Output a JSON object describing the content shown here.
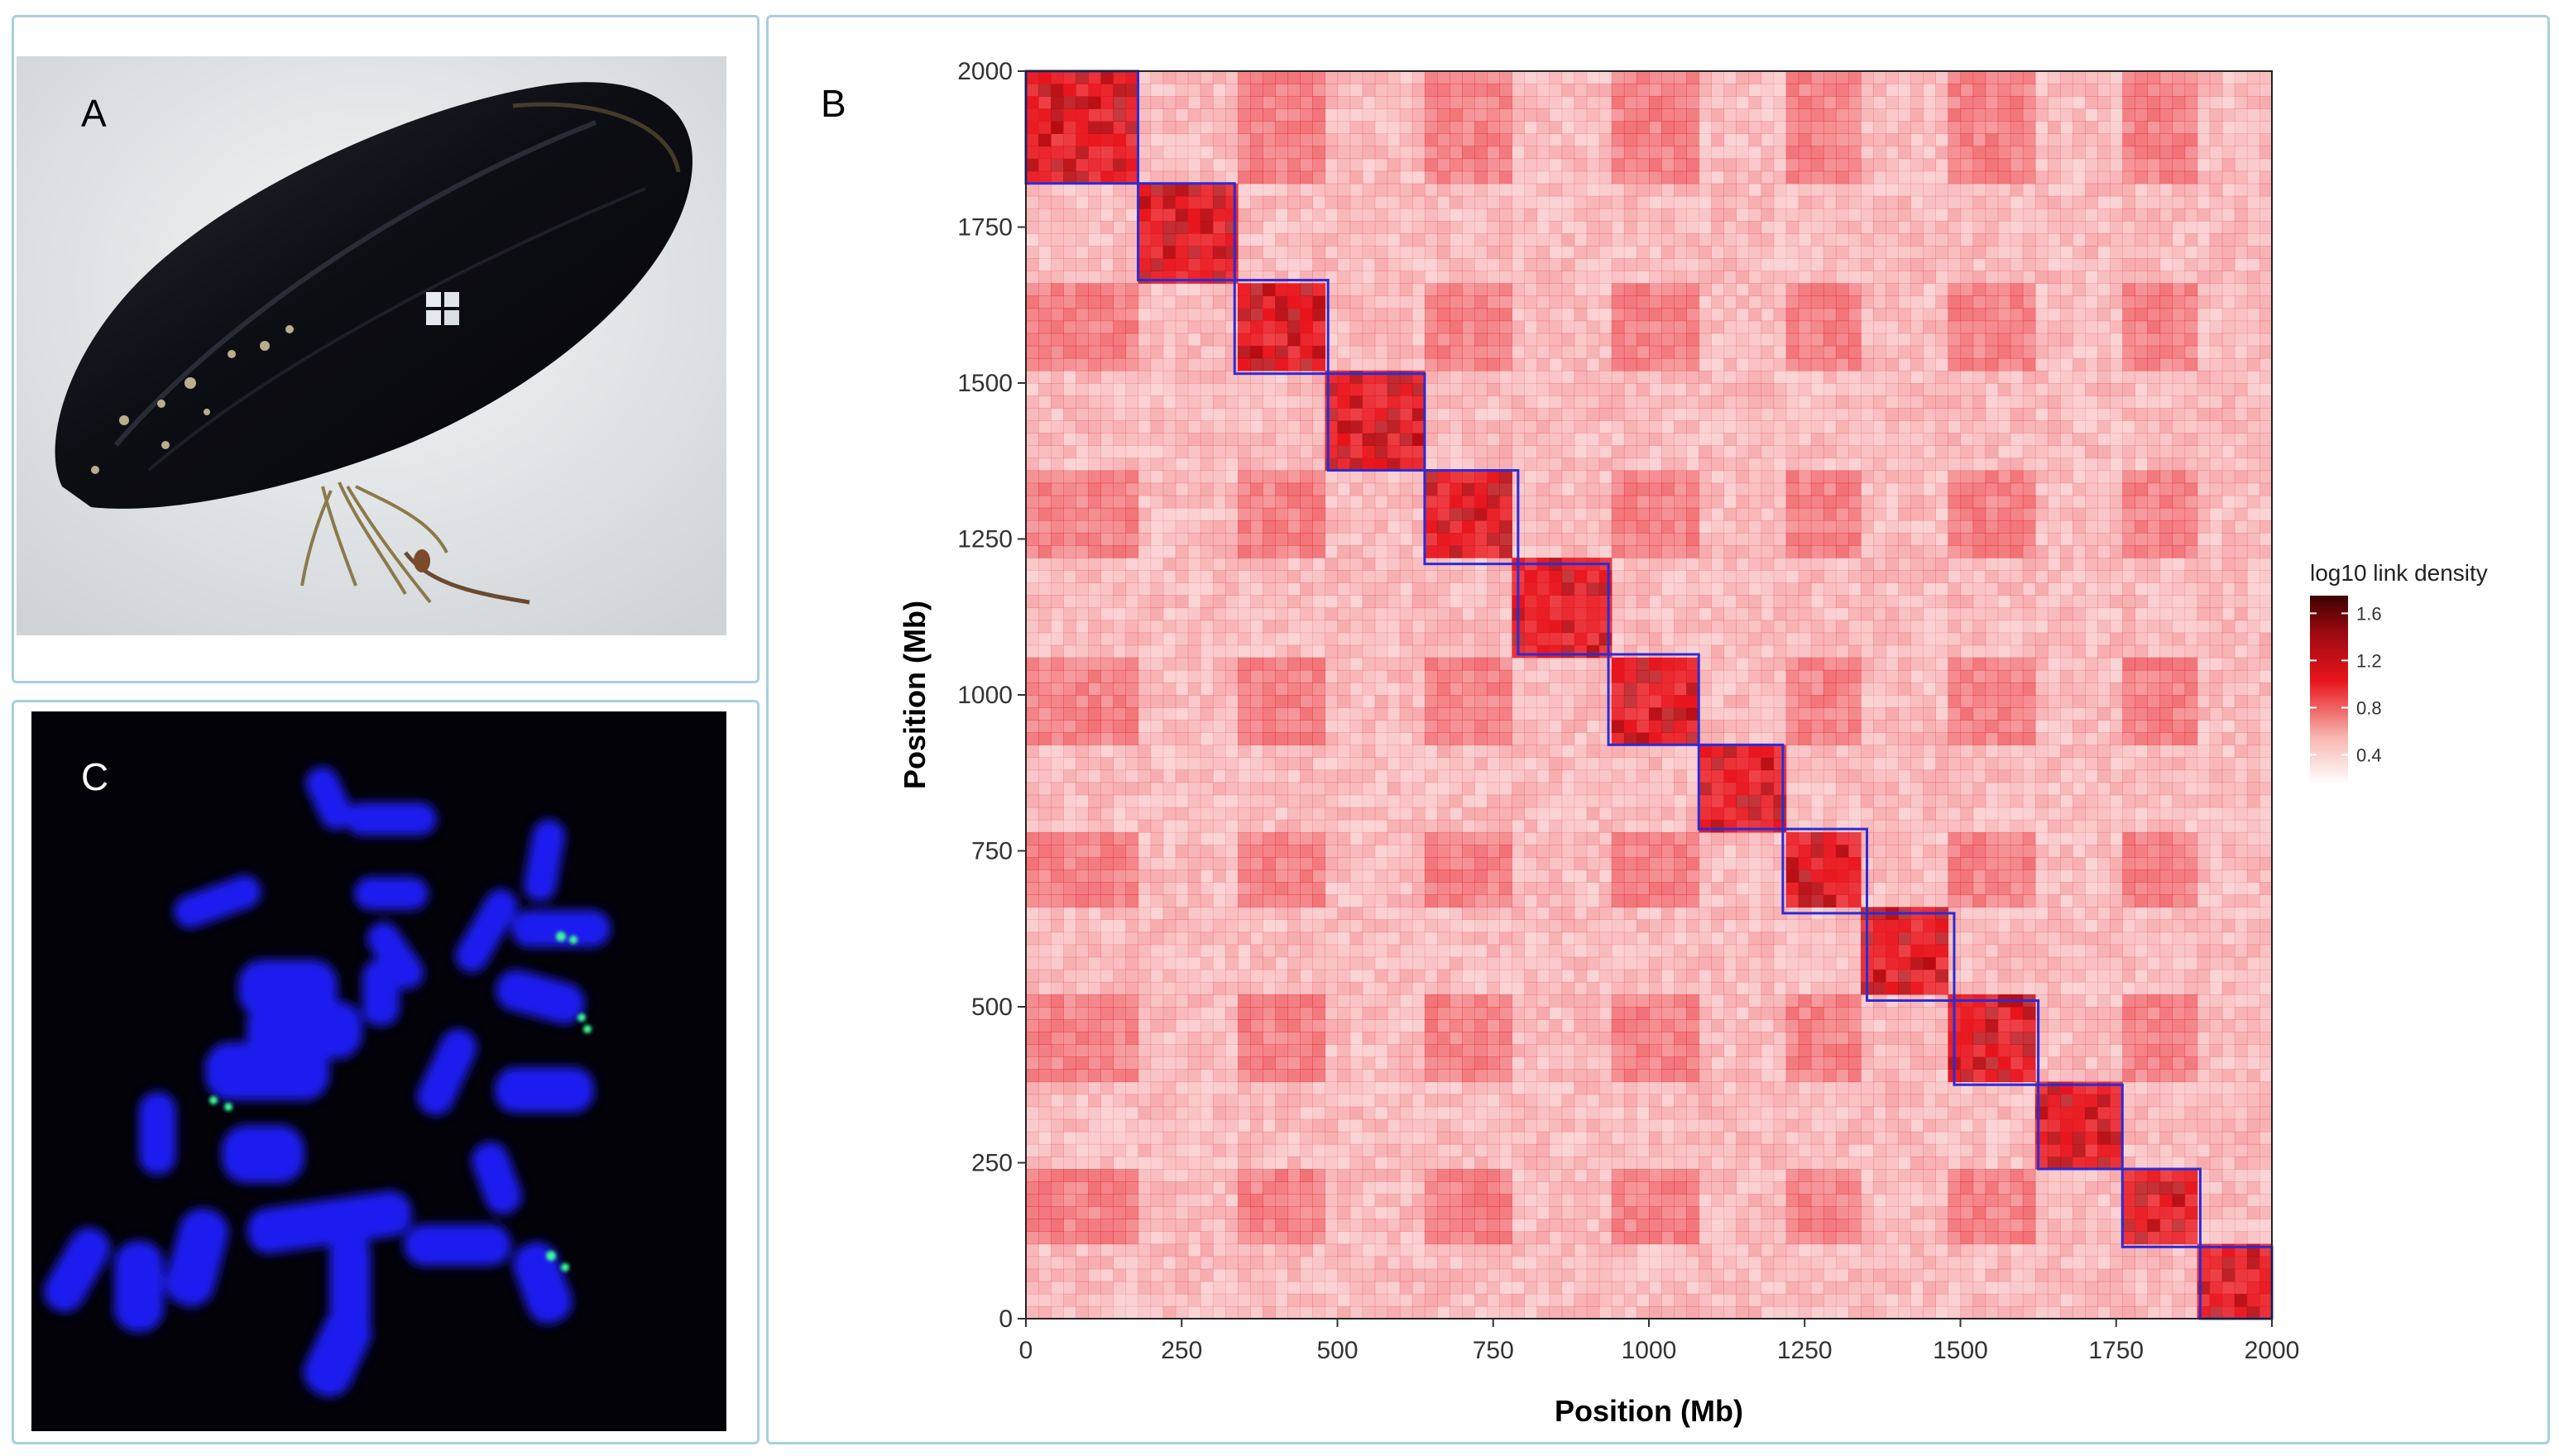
{
  "panels": {
    "a": {
      "label": "A",
      "description": "Mussel shell photograph"
    },
    "b": {
      "label": "B"
    },
    "c": {
      "label": "C",
      "description": "FISH chromosome spread"
    }
  },
  "chart_data": {
    "type": "heatmap",
    "title": "",
    "xlabel": "Position (Mb)",
    "ylabel": "Position (Mb)",
    "xlim": [
      0,
      2000
    ],
    "ylim": [
      0,
      2000
    ],
    "x_ticks": [
      0,
      250,
      500,
      750,
      1000,
      1250,
      1500,
      1750,
      2000
    ],
    "y_ticks": [
      0,
      250,
      500,
      750,
      1000,
      1250,
      1500,
      1750,
      2000
    ],
    "x_tick_labels": [
      "0",
      "250",
      "500",
      "750",
      "1000",
      "1250",
      "1500",
      "1750",
      "2000"
    ],
    "y_tick_labels": [
      "0",
      "250",
      "500",
      "750",
      "1000",
      "1250",
      "1500",
      "1750",
      "2000"
    ],
    "chromosome_boundaries_mb": [
      0,
      180,
      335,
      485,
      640,
      790,
      935,
      1080,
      1215,
      1350,
      1490,
      1625,
      1760,
      1885,
      2000
    ],
    "legend": {
      "title": "log10 link density",
      "ticks": [
        "1.6",
        "1.2",
        "0.8",
        "0.4"
      ],
      "tick_values": [
        1.6,
        1.2,
        0.8,
        0.4
      ],
      "range": [
        0.15,
        1.75
      ],
      "placement": "right"
    },
    "colors": {
      "high": "#3d0000",
      "mid": "#e8141c",
      "low": "#ffffff",
      "boundary": "#2b2bd6"
    }
  }
}
